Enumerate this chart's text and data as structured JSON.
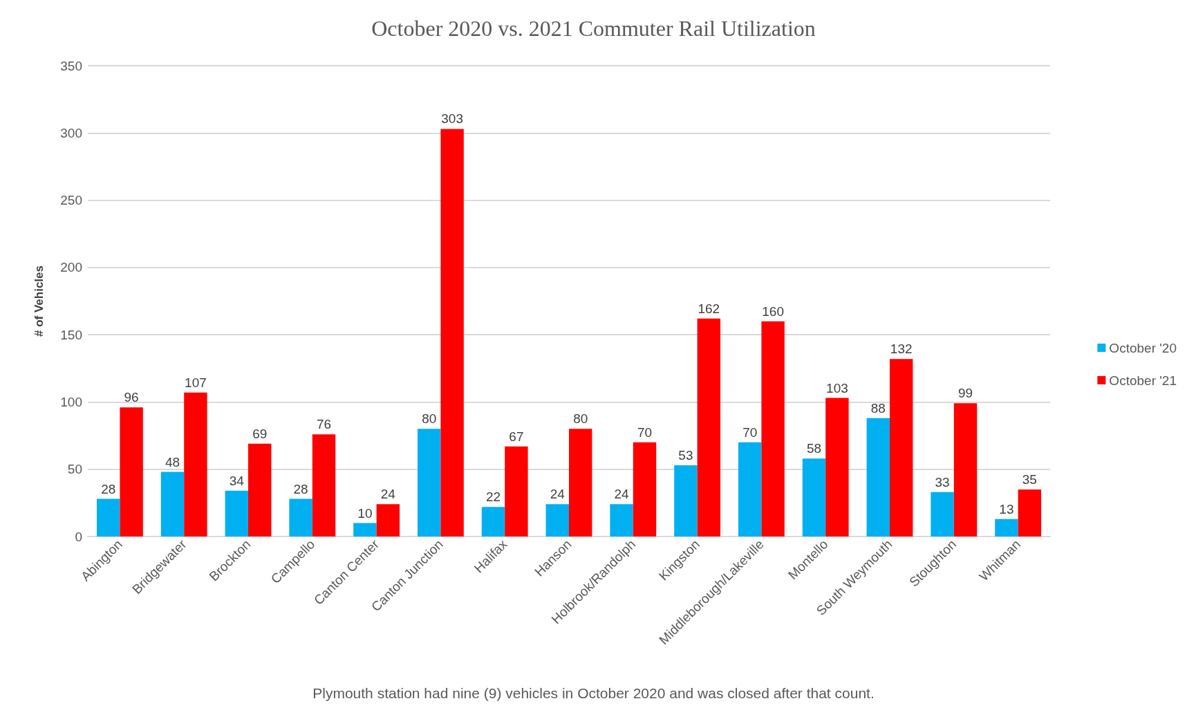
{
  "chart_data": {
    "type": "bar",
    "title": "October 2020 vs. 2021 Commuter Rail Utilization",
    "ylabel": "# of Vehicles",
    "categories": [
      "Abington",
      "Bridgewater",
      "Brockton",
      "Campello",
      "Canton Center",
      "Canton Junction",
      "Halifax",
      "Hanson",
      "Holbrook/Randolph",
      "Kingston",
      "Middleborough/Lakeville",
      "Montello",
      "South Weymouth",
      "Stoughton",
      "Whitman"
    ],
    "series": [
      {
        "name": "October '20",
        "color": "#00b0f0",
        "values": [
          28,
          48,
          34,
          28,
          10,
          80,
          22,
          24,
          24,
          53,
          70,
          58,
          88,
          33,
          13
        ]
      },
      {
        "name": "October '21",
        "color": "#ff0000",
        "values": [
          96,
          107,
          69,
          76,
          24,
          303,
          67,
          80,
          70,
          162,
          160,
          103,
          132,
          99,
          35
        ]
      }
    ],
    "ylim": [
      0,
      350
    ],
    "yticks": [
      0,
      50,
      100,
      150,
      200,
      250,
      300,
      350
    ],
    "grid": "y",
    "legend": "right",
    "data_labels": true,
    "annotations": [
      "Plymouth station had nine (9) vehicles in October 2020 and was closed after that count."
    ]
  }
}
